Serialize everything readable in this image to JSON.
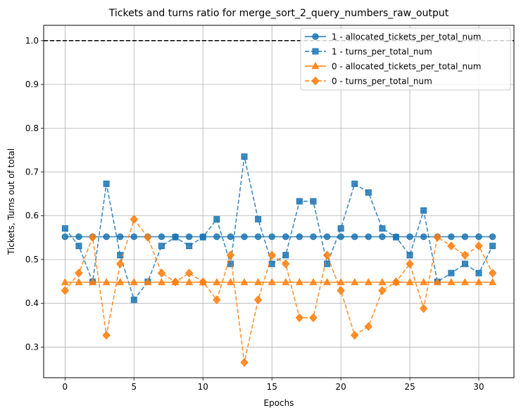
{
  "chart_data": {
    "type": "line",
    "title": "Tickets and turns ratio for merge_sort_2_query_numbers_raw_output",
    "xlabel": "Epochs",
    "ylabel": "Tickets, Turns out of total",
    "xlim": [
      -1.55,
      32.55
    ],
    "ylim": [
      0.23,
      1.035
    ],
    "xticks": [
      0,
      5,
      10,
      15,
      20,
      25,
      30
    ],
    "yticks": [
      0.3,
      0.4,
      0.5,
      0.6,
      0.7,
      0.8,
      0.9,
      1.0
    ],
    "ytick_labels": [
      "0.3",
      "0.4",
      "0.5",
      "0.6",
      "0.7",
      "0.8",
      "0.9",
      "1.0"
    ],
    "grid": true,
    "reference_line": {
      "y": 1.0,
      "style": "dashed",
      "color": "#000000"
    },
    "legend_position": "top-right",
    "x": [
      0,
      1,
      2,
      3,
      4,
      5,
      6,
      7,
      8,
      9,
      10,
      11,
      12,
      13,
      14,
      15,
      16,
      17,
      18,
      19,
      20,
      21,
      22,
      23,
      24,
      25,
      26,
      27,
      28,
      29,
      30,
      31
    ],
    "series": [
      {
        "name": "1 - allocated_tickets_per_total_num",
        "color": "#1f77b4",
        "line": "solid",
        "marker": "circle",
        "values": [
          0.552,
          0.552,
          0.552,
          0.552,
          0.552,
          0.552,
          0.552,
          0.552,
          0.552,
          0.552,
          0.552,
          0.552,
          0.552,
          0.552,
          0.552,
          0.552,
          0.552,
          0.552,
          0.552,
          0.552,
          0.552,
          0.552,
          0.552,
          0.552,
          0.552,
          0.552,
          0.552,
          0.552,
          0.552,
          0.552,
          0.552,
          0.552
        ]
      },
      {
        "name": "1 - turns_per_total_num",
        "color": "#1f77b4",
        "line": "dashed",
        "marker": "square",
        "values": [
          0.571,
          0.531,
          0.449,
          0.673,
          0.51,
          0.408,
          0.449,
          0.531,
          0.551,
          0.531,
          0.551,
          0.592,
          0.49,
          0.735,
          0.592,
          0.49,
          0.51,
          0.633,
          0.633,
          0.49,
          0.571,
          0.673,
          0.653,
          0.571,
          0.551,
          0.51,
          0.612,
          0.449,
          0.469,
          0.49,
          0.469,
          0.531
        ]
      },
      {
        "name": "0 - allocated_tickets_per_total_num",
        "color": "#ff7f0e",
        "line": "solid",
        "marker": "triangle",
        "values": [
          0.448,
          0.448,
          0.448,
          0.448,
          0.448,
          0.448,
          0.448,
          0.448,
          0.448,
          0.448,
          0.448,
          0.448,
          0.448,
          0.448,
          0.448,
          0.448,
          0.448,
          0.448,
          0.448,
          0.448,
          0.448,
          0.448,
          0.448,
          0.448,
          0.448,
          0.448,
          0.448,
          0.448,
          0.448,
          0.448,
          0.448,
          0.448
        ]
      },
      {
        "name": "0 - turns_per_total_num",
        "color": "#ff7f0e",
        "line": "dashed",
        "marker": "diamond",
        "values": [
          0.429,
          0.469,
          0.551,
          0.327,
          0.49,
          0.592,
          0.551,
          0.469,
          0.449,
          0.469,
          0.449,
          0.408,
          0.51,
          0.265,
          0.408,
          0.51,
          0.49,
          0.367,
          0.367,
          0.51,
          0.429,
          0.327,
          0.347,
          0.429,
          0.449,
          0.49,
          0.388,
          0.551,
          0.531,
          0.51,
          0.531,
          0.469
        ]
      }
    ]
  }
}
